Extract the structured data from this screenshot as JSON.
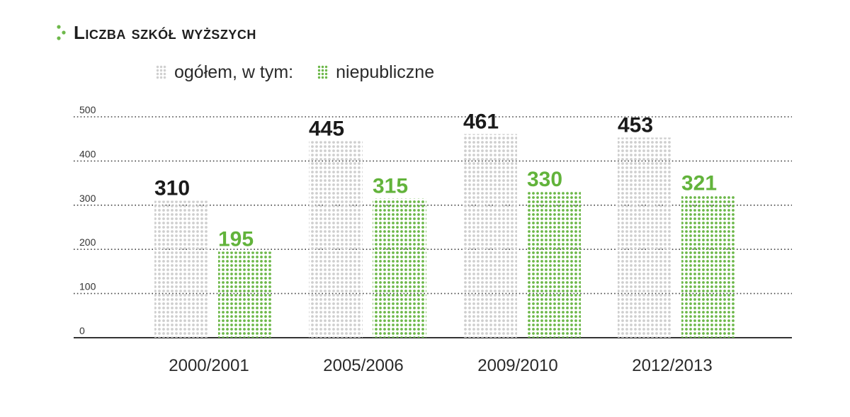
{
  "title": "Liczba szkół wyższych",
  "legend": {
    "total_label": "ogółem, w tym:",
    "private_label": "niepubliczne"
  },
  "colors": {
    "total": "#cfcfcf",
    "private": "#6db84a",
    "total_value_text": "#1a1a1a",
    "private_value_text": "#62b33b"
  },
  "chart_data": {
    "type": "bar",
    "title": "Liczba szkół wyższych",
    "categories": [
      "2000/2001",
      "2005/2006",
      "2009/2010",
      "2012/2013"
    ],
    "series": [
      {
        "name": "ogółem, w tym:",
        "values": [
          310,
          445,
          461,
          453
        ]
      },
      {
        "name": "niepubliczne",
        "values": [
          195,
          315,
          330,
          321
        ]
      }
    ],
    "yticks": [
      0,
      100,
      200,
      300,
      400,
      500
    ],
    "ylim": [
      0,
      500
    ],
    "grid": true,
    "legend_position": "top"
  }
}
